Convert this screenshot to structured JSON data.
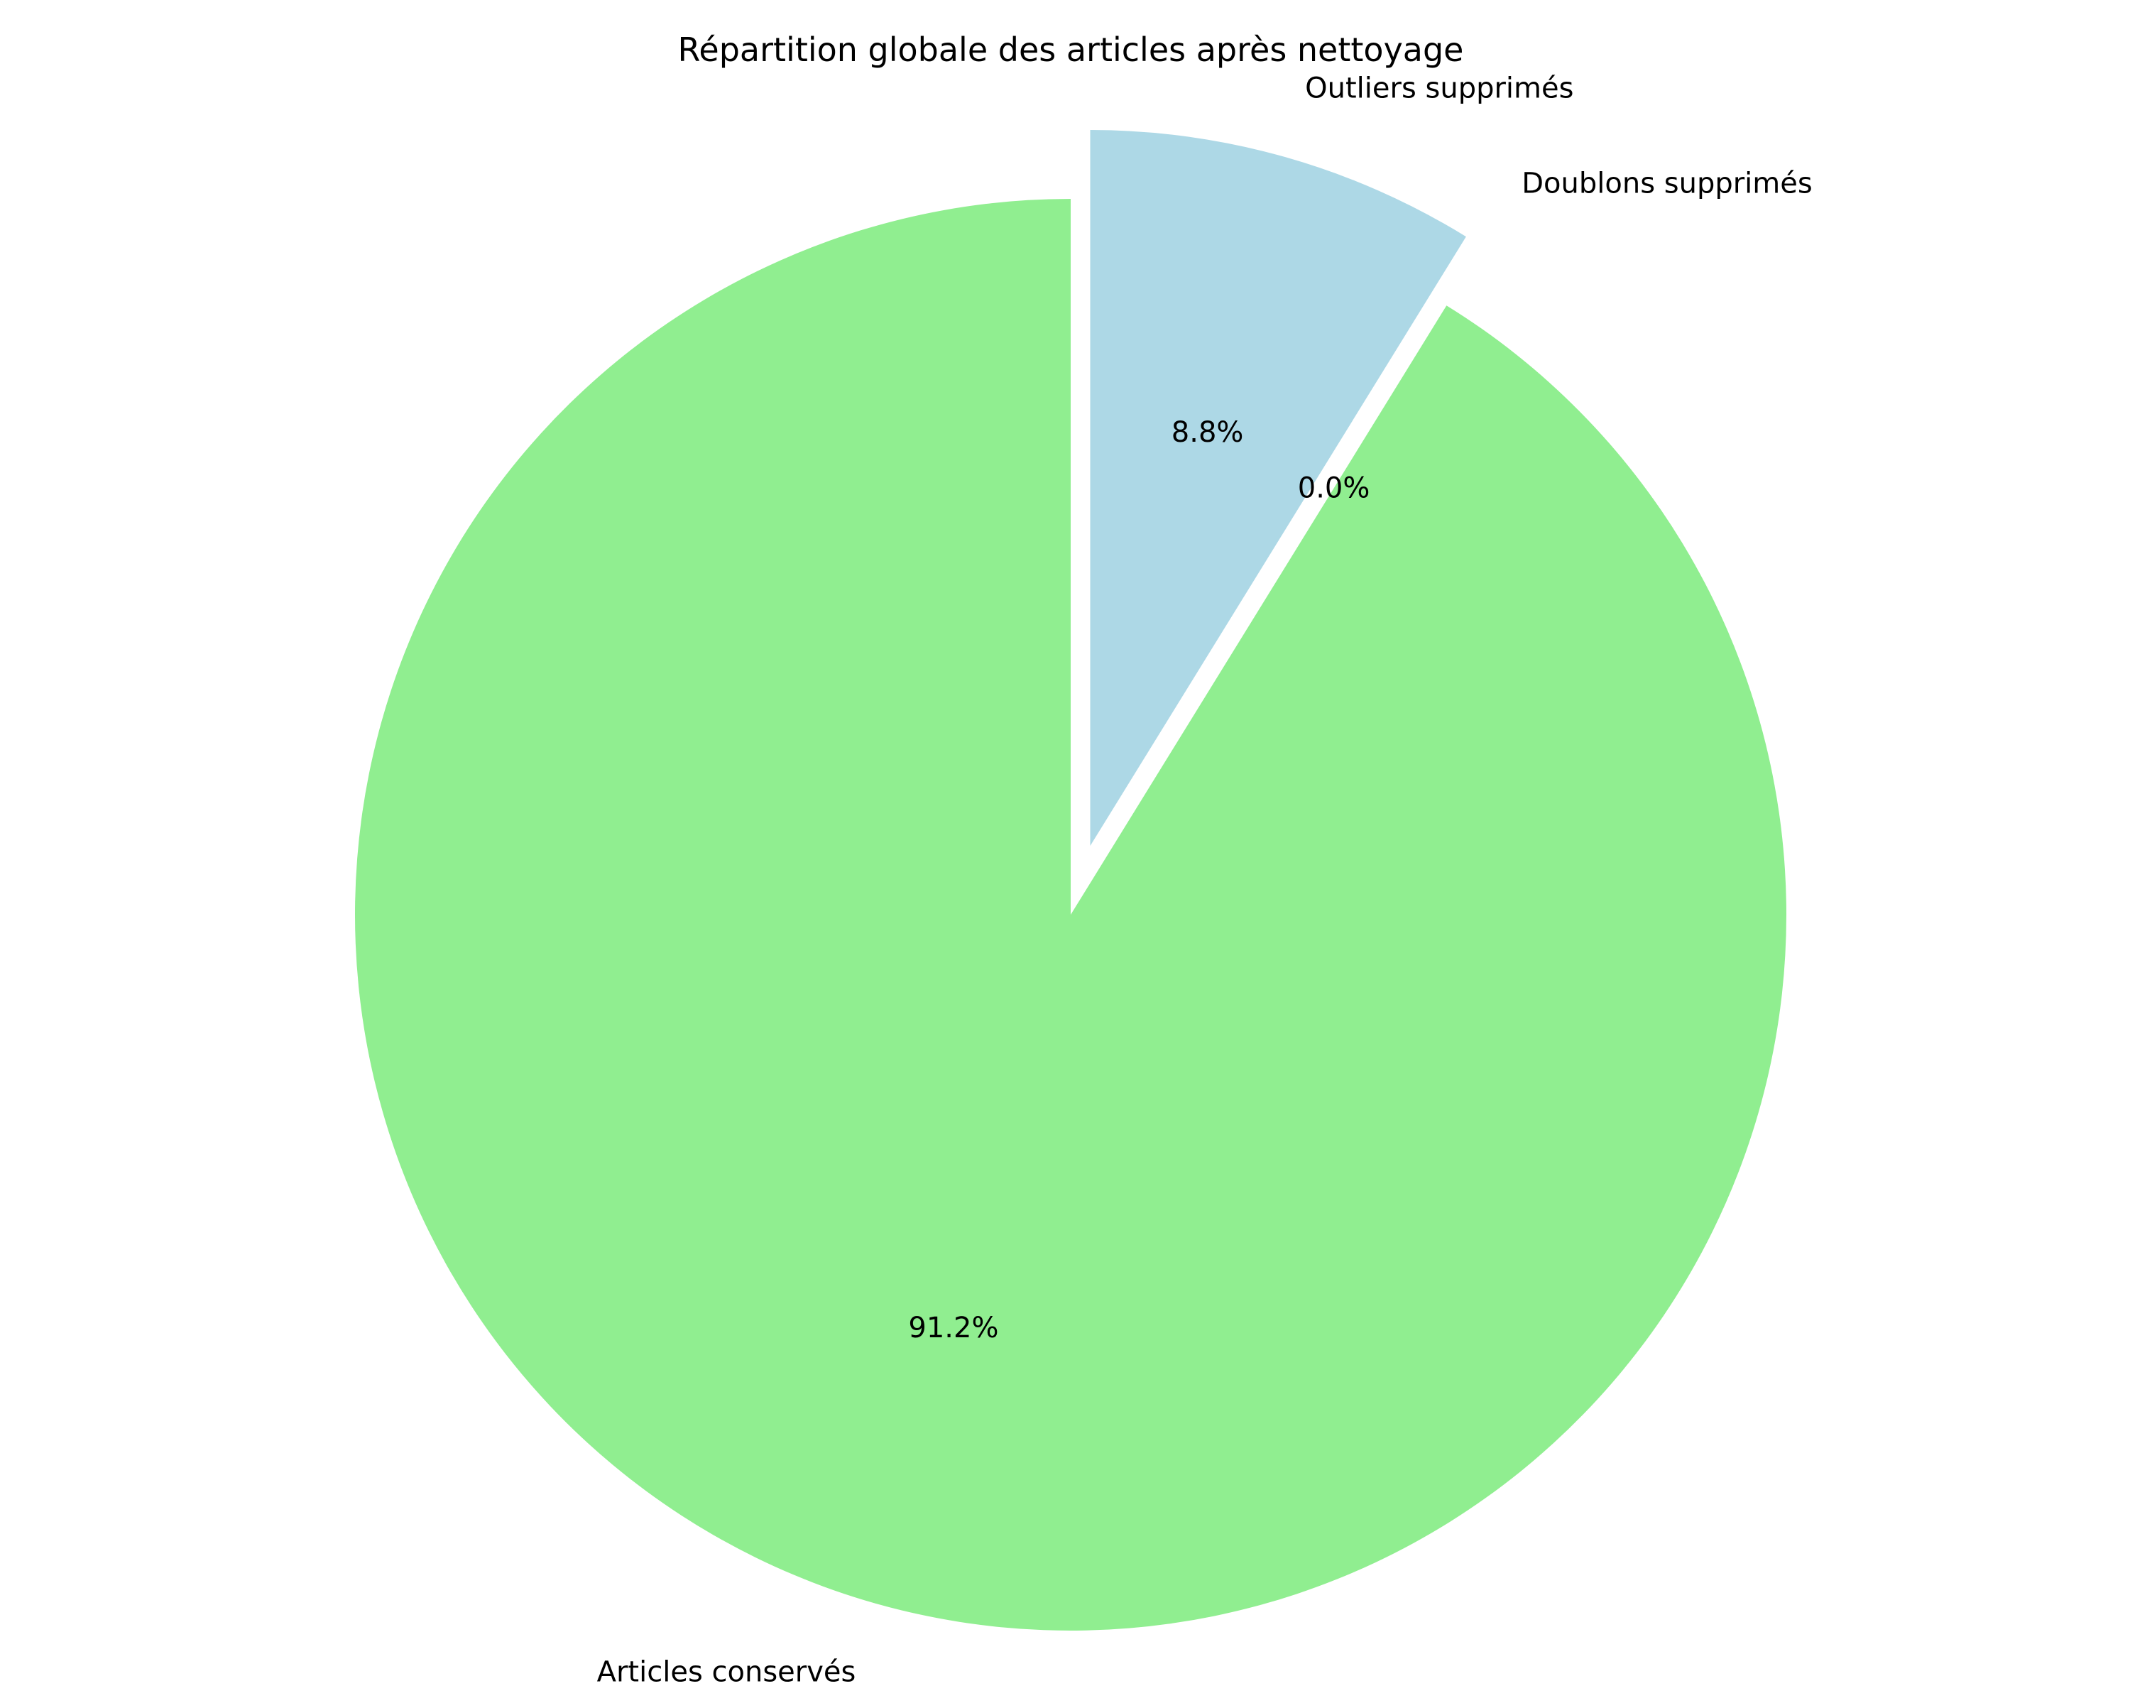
{
  "chart_data": {
    "type": "pie",
    "title": "Répartition globale des articles après nettoyage",
    "slices": [
      {
        "label": "Outliers supprimés",
        "value": 8.8,
        "pct_label": "8.8%",
        "color": "#ADD8E6",
        "exploded": true
      },
      {
        "label": "Doublons supprimés",
        "value": 0.0,
        "pct_label": "0.0%",
        "color": "#F08080",
        "exploded": true
      },
      {
        "label": "Articles conservés",
        "value": 91.2,
        "pct_label": "91.2%",
        "color": "#90EE90",
        "exploded": false
      }
    ],
    "start_angle_deg": 90,
    "direction": "clockwise",
    "legend": "none"
  }
}
